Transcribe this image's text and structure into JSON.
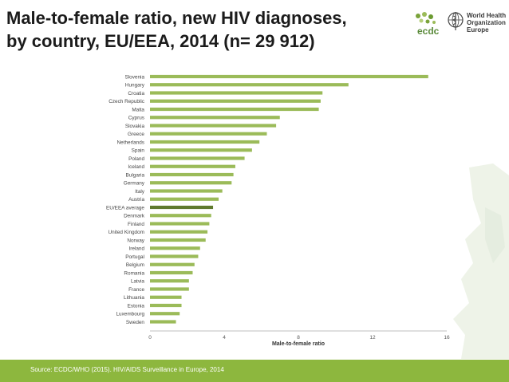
{
  "header": {
    "title_line1": "Male-to-female ratio, new HIV diagnoses,",
    "title_line2": "by country, EU/EEA, 2014 (n= 29 912)"
  },
  "logos": {
    "ecdc_label": "ecdc",
    "who_line1": "World Health",
    "who_line2": "Organization",
    "who_line3": "Europe"
  },
  "footer": {
    "source": "Source: ECDC/WHO (2015). HIV/AIDS Surveillance in Europe, 2014"
  },
  "colors": {
    "bar": "#9bbb59",
    "highlight_bar": "#5f7a2e",
    "footer": "#8db73e"
  },
  "chart_data": {
    "type": "bar",
    "orientation": "horizontal",
    "xlabel": "Male-to-female ratio",
    "xlim": [
      0,
      16
    ],
    "xticks": [
      0,
      4,
      8,
      12,
      16
    ],
    "grid": false,
    "highlight": "EU/EEA average",
    "categories": [
      "Slovenia",
      "Hungary",
      "Croatia",
      "Czech Republic",
      "Malta",
      "Cyprus",
      "Slovakia",
      "Greece",
      "Netherlands",
      "Spain",
      "Poland",
      "Iceland",
      "Bulgaria",
      "Germany",
      "Italy",
      "Austria",
      "EU/EEA average",
      "Denmark",
      "Finland",
      "United Kingdom",
      "Norway",
      "Ireland",
      "Portugal",
      "Belgium",
      "Romania",
      "Latvia",
      "France",
      "Lithuania",
      "Estonia",
      "Luxembourg",
      "Sweden"
    ],
    "values": [
      15.0,
      10.7,
      9.3,
      9.2,
      9.1,
      7.0,
      6.8,
      6.3,
      5.9,
      5.5,
      5.1,
      4.6,
      4.5,
      4.4,
      3.9,
      3.7,
      3.4,
      3.3,
      3.2,
      3.1,
      3.0,
      2.7,
      2.6,
      2.4,
      2.3,
      2.1,
      2.1,
      1.7,
      1.7,
      1.6,
      1.4
    ]
  }
}
